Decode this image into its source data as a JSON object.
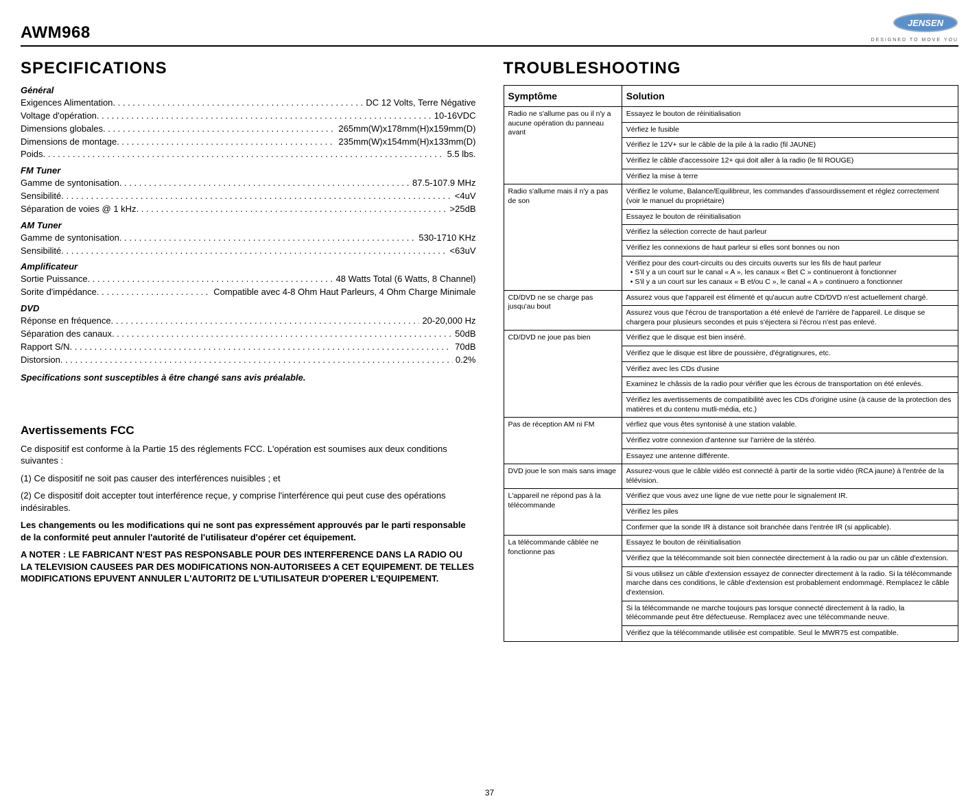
{
  "header": {
    "model": "AWM968",
    "logo_text": "JENSEN",
    "tagline": "DESIGNED TO MOVE  YOU",
    "logo_bg": "#5b8fc9",
    "logo_text_color": "#ffffff",
    "logo_border": "#c0c0c0"
  },
  "page_number": "37",
  "specifications": {
    "title": "SPECIFICATIONS",
    "groups": [
      {
        "heading": "Général",
        "rows": [
          {
            "label": "Exigences Alimentation",
            "value": "DC 12 Volts, Terre Négative"
          },
          {
            "label": "Voltage d'opération",
            "value": "10-16VDC"
          },
          {
            "label": "Dimensions globales",
            "value": "265mm(W)x178mm(H)x159mm(D)"
          },
          {
            "label": "Dimensions de montage",
            "value": "235mm(W)x154mm(H)x133mm(D)"
          },
          {
            "label": "Poids",
            "value": "5.5 lbs."
          }
        ]
      },
      {
        "heading": "FM Tuner",
        "rows": [
          {
            "label": "Gamme de syntonisation",
            "value": "87.5-107.9 MHz"
          },
          {
            "label": "Sensibilité",
            "value": "<4uV"
          },
          {
            "label": "Séparation de voies @ 1 kHz",
            "value": ">25dB"
          }
        ]
      },
      {
        "heading": "AM Tuner",
        "rows": [
          {
            "label": "Gamme de syntonisation",
            "value": "530-1710 KHz"
          },
          {
            "label": "Sensibilité",
            "value": "<63uV"
          }
        ]
      },
      {
        "heading": "Amplificateur",
        "rows": [
          {
            "label": "Sortie Puissance",
            "value": "48 Watts Total (6 Watts, 8 Channel)"
          },
          {
            "label": "Sorite d'impédance",
            "value": "Compatible avec 4-8 Ohm Haut Parleurs, 4 Ohm Charge Minimale"
          }
        ]
      },
      {
        "heading": "DVD",
        "rows": [
          {
            "label": "Réponse en fréquence",
            "value": "20-20,000 Hz"
          },
          {
            "label": "Séparation des canaux",
            "value": "50dB"
          },
          {
            "label": "Rapport S/N",
            "value": "70dB"
          },
          {
            "label": "Distorsion",
            "value": "0.2%"
          }
        ]
      }
    ],
    "disclaimer": "Specifications sont susceptibles à être changé sans avis préalable."
  },
  "fcc": {
    "title": "Avertissements FCC",
    "paragraphs": [
      {
        "text": "Ce dispositif est conforme à la Partie 15 des réglements FCC. L'opération est soumises aux deux conditions suivantes :",
        "bold": false
      },
      {
        "text": "(1) Ce dispositif ne soit pas causer des interférences nuisibles ; et",
        "bold": false
      },
      {
        "text": "(2) Ce dispositif doit accepter tout interférence reçue, y comprise l'interférence qui peut cuse des opérations indésirables.",
        "bold": false
      },
      {
        "text": "Les changements ou les modifications qui ne sont pas expressément approuvés par le parti responsable de la conformité peut annuler l'autorité de l'utilisateur d'opérer cet équipement.",
        "bold": true
      },
      {
        "text": "A NOTER : LE FABRICANT N'EST PAS RESPONSABLE POUR DES INTERFERENCE DANS LA RADIO OU LA TELEVISION CAUSEES PAR DES MODIFICATIONS NON-AUTORISEES A CET EQUIPEMENT. DE TELLES MODIFICATIONS EPUVENT ANNULER L'AUTORIT2 DE L'UTILISATEUR D'OPERER L'EQUIPEMENT.",
        "bold": true
      }
    ]
  },
  "troubleshooting": {
    "title": "TROUBLESHOOTING",
    "columns": [
      "Symptôme",
      "Solution"
    ],
    "rows": [
      {
        "symptom": "Radio ne s'allume pas ou il n'y a aucune opération du panneau avant",
        "solutions": [
          "Essayez le bouton de réinitialisation",
          "Vérfiez le fusible",
          "Vérifiez le 12V+ sur le câble de la pile à la radio (fil JAUNE)",
          "Vérifiez le câble d'accessoire 12+ qui doit aller à la radio (le fil ROUGE)",
          "Vérifiez la mise à terre"
        ]
      },
      {
        "symptom": "Radio s'allume mais il n'y a pas de son",
        "solutions": [
          "Vérifiez le volume, Balance/Equilibreur, les commandes d'assourdissement et réglez correctement (voir le manuel du propriétaire)",
          "Essayez le bouton de réinitialisation",
          "Vérifiez la sélection correcte de haut parleur",
          "Vérifiez les connexions de haut parleur si elles sont bonnes ou non",
          "Vérifiez pour des court-circuits ou des circuits ouverts sur les fils de haut parleur\n•        S'il y a un court sur le canal « A », les canaux « Bet C » continueront à fonctionner\n•        S'il y a un court sur les canaux « B et/ou C », le canal « A » continuero a fonctionner"
        ]
      },
      {
        "symptom": "CD/DVD ne se charge pas jusqu'au bout",
        "solutions": [
          "Assurez vous que l'appareil est élimenté et qu'aucun autre CD/DVD n'est actuellement chargé.",
          "Assurez vous que l'écrou de transportation a été enlevé de l'arrière de l'appareil. Le disque se chargera pour plusieurs secondes et puis s'éjectera si l'écrou n'est pas enlevé."
        ]
      },
      {
        "symptom": "CD/DVD ne joue pas bien",
        "solutions": [
          "Vérifiez que le disque est bien inséré.",
          "Vérifiez que le disque est libre de poussière, d'égratignures, etc.",
          "Vérifiez avec les CDs d'usine",
          "Examinez le châssis de la radio pour vérifier que les écrous de transportation on été enlevés.",
          "Vérifiez les avertissements de compatibilité avec les CDs d'origine usine (à cause de la protection des matières et du contenu mutli-média, etc.)"
        ]
      },
      {
        "symptom": "Pas de réception AM ni FM",
        "solutions": [
          "vérfiez que vous êtes syntonisé à une station valable.",
          "Vérifiez votre connexion d'antenne sur l'arrière de la stéréo.",
          "Essayez une antenne différente."
        ]
      },
      {
        "symptom": "DVD joue le son mais sans image",
        "solutions": [
          "Assurez-vous que le câble vidéo est connecté à partir de la sortie vidéo (RCA jaune) à l'entrée de la télévision."
        ]
      },
      {
        "symptom": "L'appareil ne répond pas à la télécommande",
        "solutions": [
          "Vérifiez que vous avez une ligne de vue nette pour le signalement IR.",
          "Vérifiez les piles",
          "Confirmer que la sonde IR à distance soit branchée dans l'entrée IR (si applicable)."
        ]
      },
      {
        "symptom": "La télécommande câblée ne fonctionne pas",
        "solutions": [
          "Essayez le bouton de réinitialisation",
          "Vérifiez que la télécommande soit bien connectée directement à la radio ou par un câble d'extension.",
          "Si vous utilisez un câble d'extension essayez de connecter directement à la radio. Si la télécommande marche dans ces conditions, le câble d'extension est probablement endommagé. Remplacez le câble d'extension.",
          "Si la télécommande ne marche toujours pas lorsque connecté directement à la radio, la télécommande peut être défectueuse. Remplacez avec une télécommande neuve.",
          "Vérifiez que la télécommande utilisée est compatible. Seul le MWR75 est compatible."
        ]
      }
    ]
  }
}
